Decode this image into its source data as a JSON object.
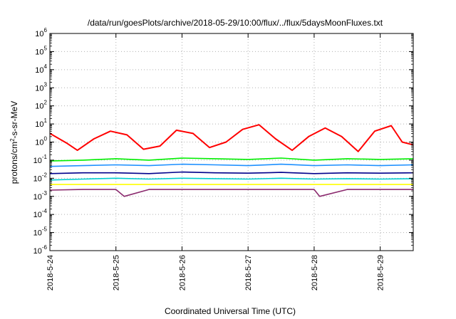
{
  "chart_data": {
    "type": "line",
    "title": "/data/run/goesPlots/archive/2018-05-29/10:00/flux/../flux/5daysMoonFluxes.txt",
    "xlabel": "Coordinated Universal Time (UTC)",
    "ylabel_main": "protons/cm",
    "ylabel_sup": "2",
    "ylabel_rest": "-s-sr-MeV",
    "y_scale": "log",
    "ylim": [
      1e-06,
      1000000.0
    ],
    "xlim": [
      "2018-05-24 00:00",
      "2018-05-29 12:00"
    ],
    "grid": true,
    "legend": "none",
    "y_ticks": [
      {
        "base": "10",
        "exp": "-6",
        "value": 1e-06
      },
      {
        "base": "10",
        "exp": "-5",
        "value": 1e-05
      },
      {
        "base": "10",
        "exp": "-4",
        "value": 0.0001
      },
      {
        "base": "10",
        "exp": "-3",
        "value": 0.001
      },
      {
        "base": "10",
        "exp": "-2",
        "value": 0.01
      },
      {
        "base": "10",
        "exp": "-1",
        "value": 0.1
      },
      {
        "base": "10",
        "exp": "0",
        "value": 1
      },
      {
        "base": "10",
        "exp": "1",
        "value": 10.0
      },
      {
        "base": "10",
        "exp": "2",
        "value": 100.0
      },
      {
        "base": "10",
        "exp": "3",
        "value": 1000.0
      },
      {
        "base": "10",
        "exp": "4",
        "value": 10000.0
      },
      {
        "base": "10",
        "exp": "5",
        "value": 100000.0
      },
      {
        "base": "10",
        "exp": "6",
        "value": 1000000.0
      }
    ],
    "x_ticks": [
      {
        "label": "2018-5-24",
        "value": "2018-05-24 00:00"
      },
      {
        "label": "2018-5-25",
        "value": "2018-05-25 00:00"
      },
      {
        "label": "2018-5-26",
        "value": "2018-05-26 00:00"
      },
      {
        "label": "2018-5-27",
        "value": "2018-05-27 00:00"
      },
      {
        "label": "2018-5-28",
        "value": "2018-05-28 00:00"
      },
      {
        "label": "2018-5-29",
        "value": "2018-05-29 00:00"
      }
    ],
    "series": [
      {
        "color": "#ff0000",
        "x": [
          "2018-05-24 00:00",
          "2018-05-24 06:00",
          "2018-05-24 10:00",
          "2018-05-24 16:00",
          "2018-05-24 22:00",
          "2018-05-25 04:00",
          "2018-05-25 10:00",
          "2018-05-25 16:00",
          "2018-05-25 22:00",
          "2018-05-26 04:00",
          "2018-05-26 10:00",
          "2018-05-26 16:00",
          "2018-05-26 22:00",
          "2018-05-27 04:00",
          "2018-05-27 10:00",
          "2018-05-27 16:00",
          "2018-05-27 22:00",
          "2018-05-28 04:00",
          "2018-05-28 10:00",
          "2018-05-28 16:00",
          "2018-05-28 22:00",
          "2018-05-29 04:00",
          "2018-05-29 08:00",
          "2018-05-29 12:00"
        ],
        "values": [
          3,
          0.9,
          0.35,
          1.5,
          4,
          2.5,
          0.4,
          0.6,
          4.5,
          3,
          0.5,
          1,
          5,
          9,
          1.5,
          0.35,
          2,
          6,
          2,
          0.3,
          4,
          8,
          1,
          0.7
        ]
      },
      {
        "color": "#00ee00",
        "x": [
          "2018-05-24 00:00",
          "2018-05-24 12:00",
          "2018-05-25 00:00",
          "2018-05-25 12:00",
          "2018-05-26 00:00",
          "2018-05-26 12:00",
          "2018-05-27 00:00",
          "2018-05-27 12:00",
          "2018-05-28 00:00",
          "2018-05-28 12:00",
          "2018-05-29 00:00",
          "2018-05-29 12:00"
        ],
        "values": [
          0.09,
          0.1,
          0.12,
          0.1,
          0.13,
          0.12,
          0.11,
          0.13,
          0.1,
          0.12,
          0.11,
          0.12
        ]
      },
      {
        "color": "#1e90ff",
        "x": [
          "2018-05-24 00:00",
          "2018-05-24 12:00",
          "2018-05-25 00:00",
          "2018-05-25 12:00",
          "2018-05-26 00:00",
          "2018-05-26 12:00",
          "2018-05-27 00:00",
          "2018-05-27 12:00",
          "2018-05-28 00:00",
          "2018-05-28 12:00",
          "2018-05-29 00:00",
          "2018-05-29 12:00"
        ],
        "values": [
          0.045,
          0.05,
          0.055,
          0.05,
          0.06,
          0.055,
          0.05,
          0.06,
          0.05,
          0.055,
          0.05,
          0.055
        ]
      },
      {
        "color": "#00008b",
        "x": [
          "2018-05-24 00:00",
          "2018-05-24 12:00",
          "2018-05-25 00:00",
          "2018-05-25 12:00",
          "2018-05-26 00:00",
          "2018-05-26 12:00",
          "2018-05-27 00:00",
          "2018-05-27 12:00",
          "2018-05-28 00:00",
          "2018-05-28 12:00",
          "2018-05-29 00:00",
          "2018-05-29 12:00"
        ],
        "values": [
          0.018,
          0.02,
          0.02,
          0.018,
          0.022,
          0.02,
          0.019,
          0.021,
          0.018,
          0.02,
          0.019,
          0.02
        ]
      },
      {
        "color": "#00ced1",
        "x": [
          "2018-05-24 00:00",
          "2018-05-24 12:00",
          "2018-05-25 00:00",
          "2018-05-25 12:00",
          "2018-05-26 00:00",
          "2018-05-26 12:00",
          "2018-05-27 00:00",
          "2018-05-27 12:00",
          "2018-05-28 00:00",
          "2018-05-28 12:00",
          "2018-05-29 00:00",
          "2018-05-29 12:00"
        ],
        "values": [
          0.008,
          0.009,
          0.01,
          0.009,
          0.01,
          0.0095,
          0.009,
          0.01,
          0.009,
          0.0095,
          0.009,
          0.0095
        ]
      },
      {
        "color": "#ffff00",
        "x": [
          "2018-05-24 00:00",
          "2018-05-24 12:00",
          "2018-05-25 00:00",
          "2018-05-25 12:00",
          "2018-05-26 00:00",
          "2018-05-26 12:00",
          "2018-05-27 00:00",
          "2018-05-27 12:00",
          "2018-05-28 00:00",
          "2018-05-28 12:00",
          "2018-05-29 00:00",
          "2018-05-29 12:00"
        ],
        "values": [
          0.0045,
          0.0045,
          0.0045,
          0.0045,
          0.0045,
          0.0045,
          0.0045,
          0.0045,
          0.0045,
          0.0045,
          0.0045,
          0.0045
        ]
      },
      {
        "color": "#8b2a6e",
        "x": [
          "2018-05-24 00:00",
          "2018-05-24 12:00",
          "2018-05-25 00:00",
          "2018-05-25 03:00",
          "2018-05-25 12:00",
          "2018-05-26 00:00",
          "2018-05-26 12:00",
          "2018-05-27 00:00",
          "2018-05-27 12:00",
          "2018-05-28 00:00",
          "2018-05-28 02:00",
          "2018-05-28 12:00",
          "2018-05-29 00:00",
          "2018-05-29 12:00"
        ],
        "values": [
          0.0022,
          0.0024,
          0.0024,
          0.001,
          0.0024,
          0.0024,
          0.0024,
          0.0024,
          0.0024,
          0.0024,
          0.001,
          0.0024,
          0.0024,
          0.0024
        ]
      }
    ]
  }
}
